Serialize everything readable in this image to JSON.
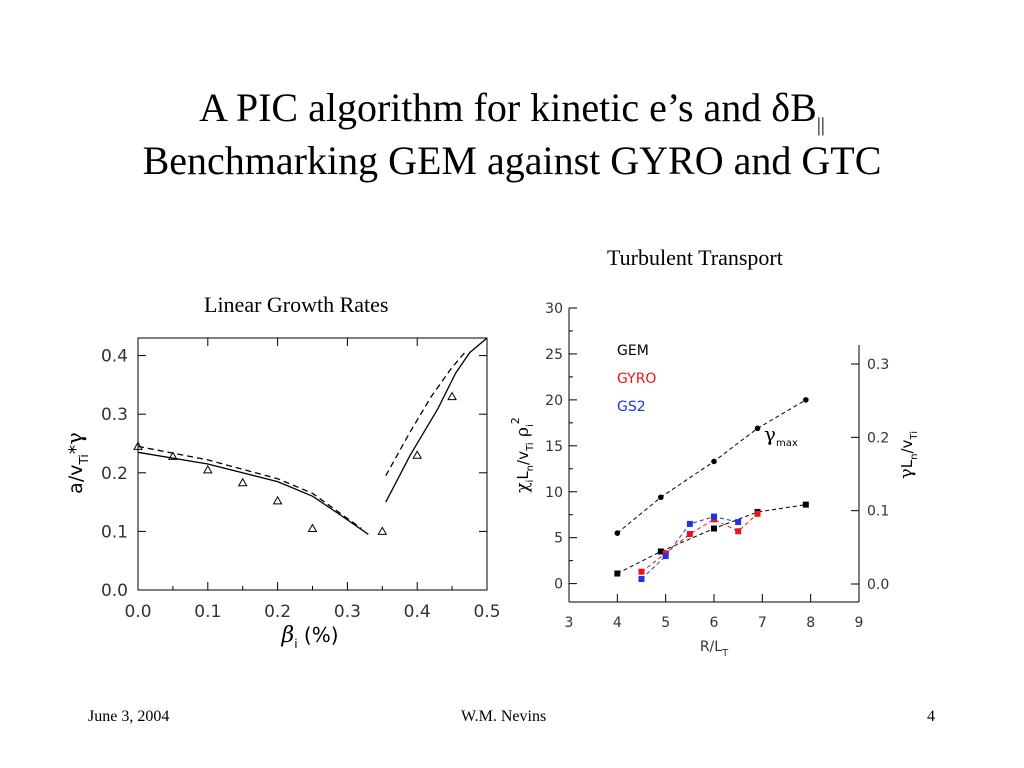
{
  "title": {
    "line1": "A PIC algorithm for kinetic e’s and δB",
    "line1_sub": "||",
    "line2": "Benchmarking GEM against GYRO and GTC"
  },
  "footer": {
    "date": "June 3, 2004",
    "author": "W.M. Nevins",
    "page": "4"
  },
  "chart_data": [
    {
      "type": "line",
      "caption": "Linear Growth Rates",
      "xlabel": "βi (%)",
      "ylabel": "a/vTi*γ",
      "xlim": [
        0.0,
        0.5
      ],
      "ylim": [
        0.0,
        0.43
      ],
      "xticks": [
        "0.0",
        "0.1",
        "0.2",
        "0.3",
        "0.4",
        "0.5"
      ],
      "yticks": [
        "0.0",
        "0.1",
        "0.2",
        "0.3",
        "0.4"
      ],
      "series": [
        {
          "style": "solid",
          "segments": [
            [
              [
                0.0,
                0.235
              ],
              [
                0.1,
                0.215
              ],
              [
                0.2,
                0.185
              ],
              [
                0.25,
                0.16
              ],
              [
                0.29,
                0.128
              ],
              [
                0.33,
                0.095
              ]
            ],
            [
              [
                0.355,
                0.15
              ],
              [
                0.39,
                0.23
              ],
              [
                0.43,
                0.31
              ],
              [
                0.455,
                0.37
              ],
              [
                0.475,
                0.405
              ],
              [
                0.5,
                0.43
              ]
            ]
          ]
        },
        {
          "style": "dashed",
          "segments": [
            [
              [
                0.0,
                0.245
              ],
              [
                0.1,
                0.222
              ],
              [
                0.2,
                0.19
              ],
              [
                0.25,
                0.165
              ],
              [
                0.285,
                0.135
              ],
              [
                0.32,
                0.105
              ]
            ],
            [
              [
                0.355,
                0.195
              ],
              [
                0.39,
                0.27
              ],
              [
                0.42,
                0.33
              ],
              [
                0.45,
                0.38
              ],
              [
                0.468,
                0.405
              ]
            ]
          ]
        },
        {
          "style": "triangles",
          "points": [
            [
              0.0,
              0.245
            ],
            [
              0.05,
              0.228
            ],
            [
              0.1,
              0.205
            ],
            [
              0.15,
              0.183
            ],
            [
              0.2,
              0.152
            ],
            [
              0.25,
              0.105
            ],
            [
              0.35,
              0.1
            ],
            [
              0.4,
              0.23
            ],
            [
              0.45,
              0.33
            ]
          ]
        }
      ]
    },
    {
      "type": "line",
      "caption": "Turbulent Transport",
      "xlabel": "R/LT",
      "ylabel": "χiLn/vTiρi2",
      "ylabel_right": "γLn/vTi",
      "xlim": [
        3,
        9
      ],
      "ylim": [
        -2,
        30
      ],
      "xticks": [
        "3",
        "4",
        "5",
        "6",
        "7",
        "8",
        "9"
      ],
      "yticks": [
        "0",
        "5",
        "10",
        "15",
        "20",
        "25",
        "30"
      ],
      "yticks_right": [
        "0.0",
        "0.1",
        "0.2",
        "0.3"
      ],
      "annotation": "γmax",
      "legend": [
        "GEM",
        "GYRO",
        "GS2"
      ],
      "colors": {
        "GEM": "#000000",
        "GYRO": "#e8141c",
        "GS2": "#1e36e0",
        "gamma": "#000000"
      },
      "series": [
        {
          "name": "GEM",
          "marker": "square",
          "x": [
            4,
            4.9,
            6,
            6.9,
            7.9
          ],
          "y": [
            1.1,
            3.5,
            6.0,
            7.8,
            8.6
          ]
        },
        {
          "name": "GYRO",
          "marker": "square",
          "x": [
            4.5,
            5,
            5.5,
            6,
            6.5,
            6.9
          ],
          "y": [
            1.3,
            3.3,
            5.4,
            7.0,
            5.7,
            7.6
          ]
        },
        {
          "name": "GS2",
          "marker": "square",
          "x": [
            4.5,
            5,
            5.5,
            6,
            6.5
          ],
          "y": [
            0.5,
            3.0,
            6.5,
            7.3,
            6.7
          ]
        },
        {
          "name": "γmax",
          "marker": "circle",
          "x": [
            4,
            4.9,
            6,
            6.9,
            7.9
          ],
          "y": [
            5.5,
            9.4,
            13.3,
            16.9,
            20.0
          ]
        }
      ]
    }
  ]
}
